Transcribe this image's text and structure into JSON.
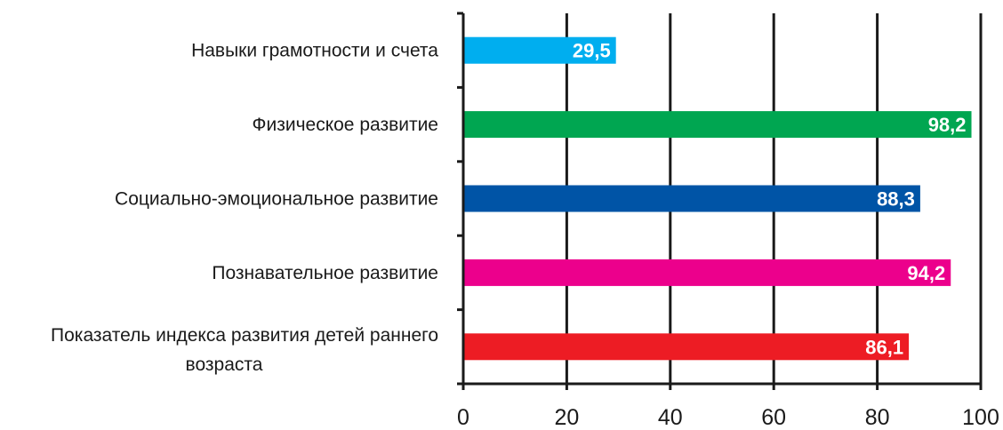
{
  "chart_data": {
    "type": "bar",
    "orientation": "horizontal",
    "categories": [
      [
        "Навыки грамотности и счета"
      ],
      [
        "Физическое развитие"
      ],
      [
        "Социально-эмоциональное развитие"
      ],
      [
        "Познавательное развитие"
      ],
      [
        "Показатель индекса развития детей раннего",
        "возраста"
      ]
    ],
    "values": [
      29.5,
      98.2,
      88.3,
      94.2,
      86.1
    ],
    "data_labels": [
      "29,5",
      "98,2",
      "88,3",
      "94,2",
      "86,1"
    ],
    "bar_colors": [
      "#00aeef",
      "#00a651",
      "#0054a6",
      "#ec008c",
      "#ed1c24"
    ],
    "xlim": [
      0,
      100
    ],
    "x_ticks": [
      0,
      20,
      40,
      60,
      80,
      100
    ],
    "x_tick_labels": [
      "0",
      "20",
      "40",
      "60",
      "80",
      "100"
    ],
    "grid": "vertical",
    "legend": "none",
    "title": "",
    "xlabel": "",
    "ylabel": ""
  }
}
